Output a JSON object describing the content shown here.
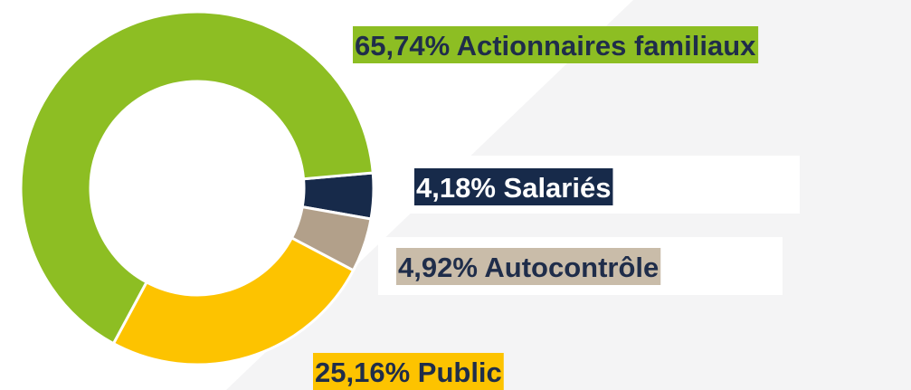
{
  "chart_data": {
    "type": "pie",
    "categories": [
      "Salariés",
      "Autocontrôle",
      "Public",
      "Actionnaires familiaux"
    ],
    "values": [
      4.18,
      4.92,
      25.16,
      65.74
    ],
    "value_labels": [
      "4,18%",
      "4,92%",
      "25,16%",
      "65,74%"
    ],
    "colors": [
      "#172a4a",
      "#b2a08a",
      "#fdc300",
      "#8dbe23"
    ]
  }
}
